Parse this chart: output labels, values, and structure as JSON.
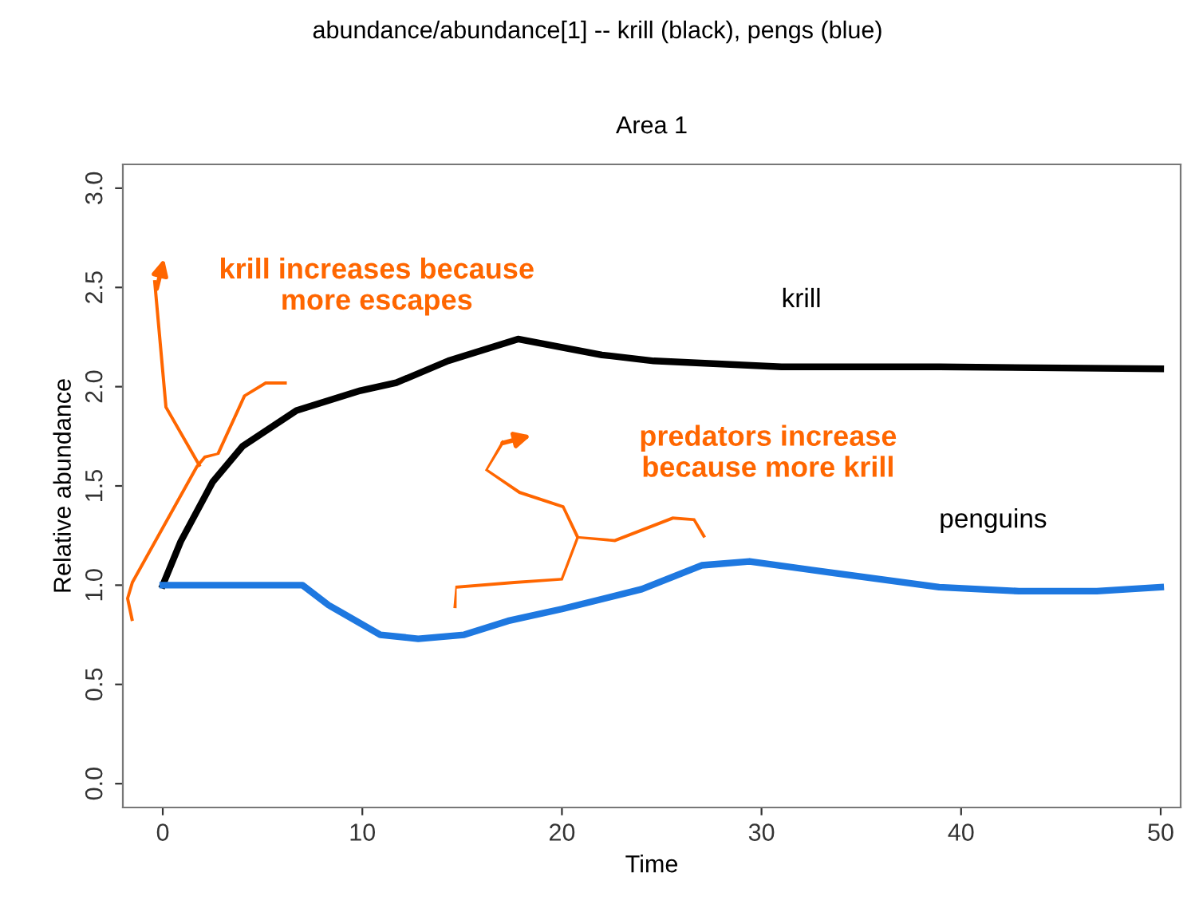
{
  "chart_data": {
    "type": "line",
    "title": "Area 1",
    "subtitle": "abundance/abundance[1] -- krill (black), pengs (blue)",
    "xlabel": "Time",
    "ylabel": "Relative abundance",
    "xlim": [
      -2,
      51
    ],
    "ylim": [
      -0.12,
      3.12
    ],
    "xticks": [
      0,
      10,
      20,
      30,
      40,
      50
    ],
    "yticks": [
      {
        "value": 0,
        "label": "0.0"
      },
      0.5,
      {
        "value": 1,
        "label": "1.0"
      },
      1.5,
      {
        "value": 2,
        "label": "2.0"
      },
      2.5,
      {
        "value": 3,
        "label": "3.0"
      }
    ],
    "grid": false,
    "legend": false,
    "line_style": "solid",
    "marker": "none",
    "series": [
      {
        "name": "krill",
        "color": "#000000",
        "x": [
          0,
          0.9,
          2.5,
          4.0,
          6.7,
          9.9,
          11.7,
          14.3,
          17.8,
          19.9,
          22.0,
          24.6,
          31,
          38.9,
          50
        ],
        "values": [
          1.0,
          1.22,
          1.52,
          1.7,
          1.88,
          1.98,
          2.02,
          2.13,
          2.24,
          2.2,
          2.16,
          2.13,
          2.1,
          2.1,
          2.09
        ]
      },
      {
        "name": "penguins",
        "color": "#1e78e0",
        "x": [
          0,
          7.0,
          8.3,
          10.9,
          12.8,
          15.1,
          17.3,
          20,
          24,
          27,
          29.4,
          33.7,
          38.9,
          42.9,
          46.8,
          50
        ],
        "values": [
          1.0,
          1.0,
          0.9,
          0.75,
          0.73,
          0.75,
          0.82,
          0.88,
          0.98,
          1.1,
          1.12,
          1.06,
          0.99,
          0.97,
          0.97,
          0.99
        ]
      }
    ],
    "annotations": [
      "krill increases because\nmore escapes",
      "predators increase\nbecause more krill"
    ]
  }
}
